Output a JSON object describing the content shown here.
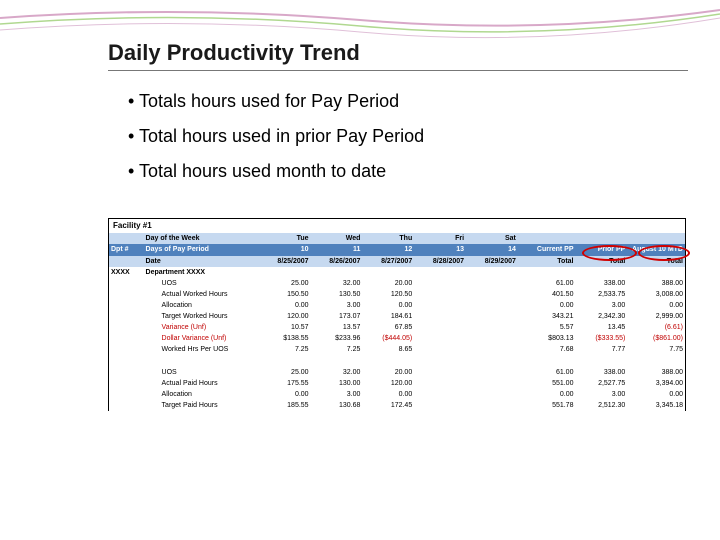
{
  "title": "Daily Productivity Trend",
  "bullets": [
    "Totals hours used for Pay Period",
    "Total hours used in prior Pay Period",
    "Total hours used month to date"
  ],
  "facility": "Facility #1",
  "headers": {
    "row1": [
      "",
      "Day of the Week",
      "Tue",
      "Wed",
      "Thu",
      "Fri",
      "Sat",
      "",
      "",
      ""
    ],
    "row2": [
      "Dpt #",
      "Days of Pay Period",
      "10",
      "11",
      "12",
      "13",
      "14",
      "Current PP",
      "Prior PP",
      "August 10 MTD"
    ],
    "row3": [
      "",
      "Date",
      "8/25/2007",
      "8/26/2007",
      "8/27/2007",
      "8/28/2007",
      "8/29/2007",
      "Total",
      "Total",
      "Total"
    ]
  },
  "dept_code": "XXXX",
  "dept_name": "Department XXXX",
  "rows1": [
    {
      "label": "UOS",
      "cells": [
        "25.00",
        "32.00",
        "20.00",
        "",
        "",
        "61.00",
        "338.00",
        "388.00"
      ]
    },
    {
      "label": "Actual Worked Hours",
      "cells": [
        "150.50",
        "130.50",
        "120.50",
        "",
        "",
        "401.50",
        "2,533.75",
        "3,008.00"
      ]
    },
    {
      "label": "Allocation",
      "cells": [
        "0.00",
        "3.00",
        "0.00",
        "",
        "",
        "0.00",
        "3.00",
        "0.00"
      ]
    },
    {
      "label": "Target Worked Hours",
      "cells": [
        "120.00",
        "173.07",
        "184.61",
        "",
        "",
        "343.21",
        "2,342.30",
        "2,999.00"
      ]
    },
    {
      "label": "Variance (Unf)",
      "cells": [
        "10.57",
        "13.57",
        "67.85",
        "",
        "",
        "5.57",
        "13.45",
        "(6.61)"
      ],
      "red": true,
      "red_cells": [
        7
      ]
    },
    {
      "label": "Dollar Variance (Unf)",
      "cells": [
        "$138.55",
        "$233.96",
        "($444.05)",
        "",
        "",
        "$803.13",
        "($333.55)",
        "($861.00)"
      ],
      "red": true,
      "red_cells": [
        2,
        6,
        7
      ]
    },
    {
      "label": "Worked Hrs Per UOS",
      "cells": [
        "7.25",
        "7.25",
        "8.65",
        "",
        "",
        "7.68",
        "7.77",
        "7.75"
      ]
    }
  ],
  "rows2": [
    {
      "label": "UOS",
      "cells": [
        "25.00",
        "32.00",
        "20.00",
        "",
        "",
        "61.00",
        "338.00",
        "388.00"
      ]
    },
    {
      "label": "Actual Paid Hours",
      "cells": [
        "175.55",
        "130.00",
        "120.00",
        "",
        "",
        "551.00",
        "2,527.75",
        "3,394.00"
      ]
    },
    {
      "label": "Allocation",
      "cells": [
        "0.00",
        "3.00",
        "0.00",
        "",
        "",
        "0.00",
        "3.00",
        "0.00"
      ]
    },
    {
      "label": "Target Paid Hours",
      "cells": [
        "185.55",
        "130.68",
        "172.45",
        "",
        "",
        "551.78",
        "2,512.30",
        "3,345.18"
      ]
    }
  ],
  "colors": {
    "hdr_light": "#c6d9f0",
    "hdr_dark": "#4f81bd",
    "red": "#c00000",
    "circle": "#d00000"
  }
}
